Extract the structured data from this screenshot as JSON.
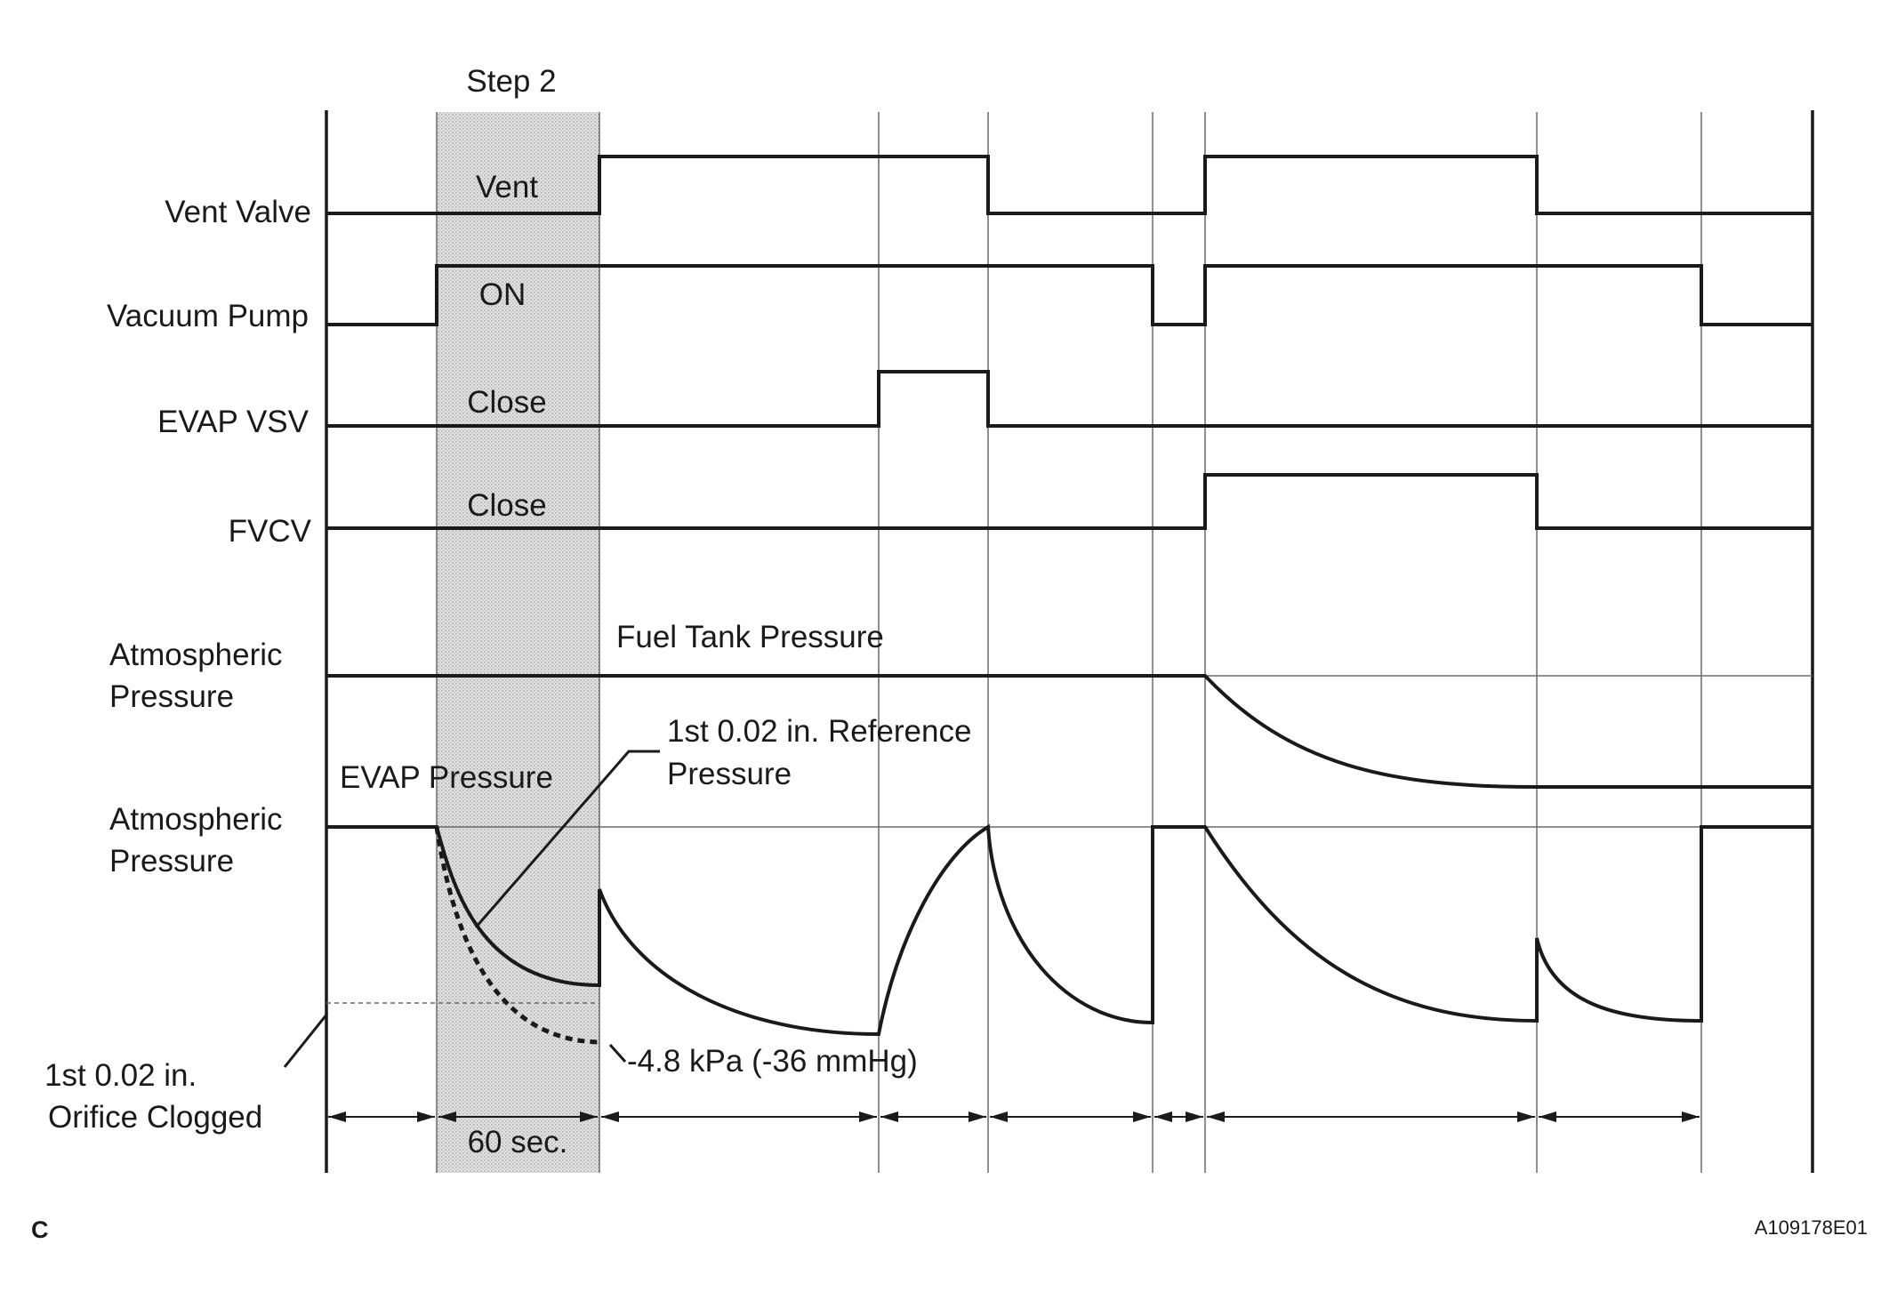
{
  "step_label": "Step 2",
  "rows": {
    "vent_valve": "Vent Valve",
    "vacuum_pump": "Vacuum Pump",
    "evap_vsv": "EVAP VSV",
    "fvcv": "FVCV",
    "atm_1_line1": "Atmospheric",
    "atm_1_line2": "Pressure",
    "atm_2_line1": "Atmospheric",
    "atm_2_line2": "Pressure"
  },
  "state_labels": {
    "vent": "Vent",
    "on": "ON",
    "close_vsv": "Close",
    "close_fvcv": "Close"
  },
  "curve_labels": {
    "fuel_tank_pressure": "Fuel Tank Pressure",
    "evap_pressure": "EVAP Pressure",
    "reference_line1": "1st 0.02 in. Reference",
    "reference_line2": "Pressure",
    "threshold": "-4.8 kPa (-36 mmHg)",
    "clogged_line1": "1st 0.02 in.",
    "clogged_line2": "Orifice Clogged"
  },
  "duration_label": "60 sec.",
  "corner_label": "C",
  "figure_id": "A109178E01",
  "colors": {
    "line": "#1a1a1a",
    "shade": "#d9d9d9",
    "grid": "#6a6a6a"
  }
}
